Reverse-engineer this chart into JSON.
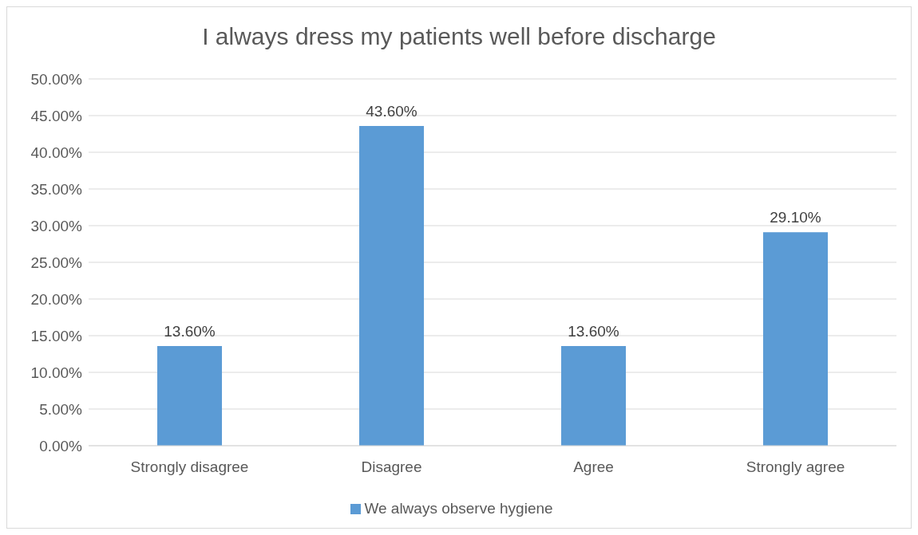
{
  "chart_data": {
    "type": "bar",
    "title": "I always dress my patients well before discharge",
    "categories": [
      "Strongly disagree",
      "Disagree",
      "Agree",
      "Strongly agree"
    ],
    "series": [
      {
        "name": "We always observe hygiene",
        "color": "#5b9bd5",
        "values": [
          13.6,
          43.6,
          13.6,
          29.1
        ],
        "value_labels": [
          "13.60%",
          "43.60%",
          "13.60%",
          "29.10%"
        ]
      }
    ],
    "ylim": [
      0,
      50
    ],
    "yticks": [
      {
        "value": 0,
        "label": "0.00%"
      },
      {
        "value": 5,
        "label": "5.00%"
      },
      {
        "value": 10,
        "label": "10.00%"
      },
      {
        "value": 15,
        "label": "15.00%"
      },
      {
        "value": 20,
        "label": "20.00%"
      },
      {
        "value": 25,
        "label": "25.00%"
      },
      {
        "value": 30,
        "label": "30.00%"
      },
      {
        "value": 35,
        "label": "35.00%"
      },
      {
        "value": 40,
        "label": "40.00%"
      },
      {
        "value": 45,
        "label": "45.00%"
      },
      {
        "value": 50,
        "label": "50.00%"
      }
    ],
    "grid": "y",
    "legend": "bottom"
  }
}
